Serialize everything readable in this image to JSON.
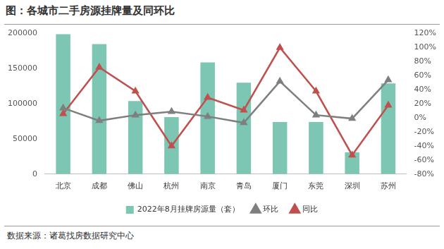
{
  "chart_data": {
    "type": "bar",
    "title": "图：各城市二手房源挂牌量及同环比",
    "source": "数据来源：诸葛找房数据研究中心",
    "categories": [
      "北京",
      "成都",
      "佛山",
      "杭州",
      "南京",
      "青岛",
      "厦门",
      "东莞",
      "深圳",
      "苏州"
    ],
    "series": [
      {
        "name": "2022年8月挂牌房源量（套）",
        "type": "bar",
        "color": "#7cc6b3",
        "values": [
          199000,
          185000,
          104000,
          81000,
          159000,
          130000,
          74000,
          74000,
          31000,
          129000
        ]
      },
      {
        "name": "环比",
        "type": "line",
        "axis": "y2",
        "color": "#7f7f7f",
        "marker": "triangle",
        "values": [
          14,
          -4,
          4,
          9,
          2,
          -7,
          52,
          4,
          -1,
          54
        ]
      },
      {
        "name": "同比",
        "type": "line",
        "axis": "y2",
        "color": "#c0504d",
        "marker": "triangle",
        "values": [
          6,
          72,
          38,
          -40,
          29,
          11,
          100,
          38,
          -53,
          18
        ]
      }
    ],
    "ylim": [
      0,
      200000
    ],
    "yticks": [
      0,
      50000,
      100000,
      150000,
      200000
    ],
    "y2lim": [
      -80,
      120
    ],
    "y2ticks": [
      {
        "value": -80,
        "label": "-80%"
      },
      {
        "value": -60,
        "label": "-60%"
      },
      {
        "value": -40,
        "label": "-40%"
      },
      {
        "value": -20,
        "label": "-20%"
      },
      {
        "value": 0,
        "label": "0%"
      },
      {
        "value": 20,
        "label": "20%"
      },
      {
        "value": 40,
        "label": "40%"
      },
      {
        "value": 60,
        "label": "60%"
      },
      {
        "value": 80,
        "label": "80%"
      },
      {
        "value": 100,
        "label": "100%"
      },
      {
        "value": 120,
        "label": "120%"
      }
    ],
    "grid": false,
    "legend": "bottom"
  }
}
